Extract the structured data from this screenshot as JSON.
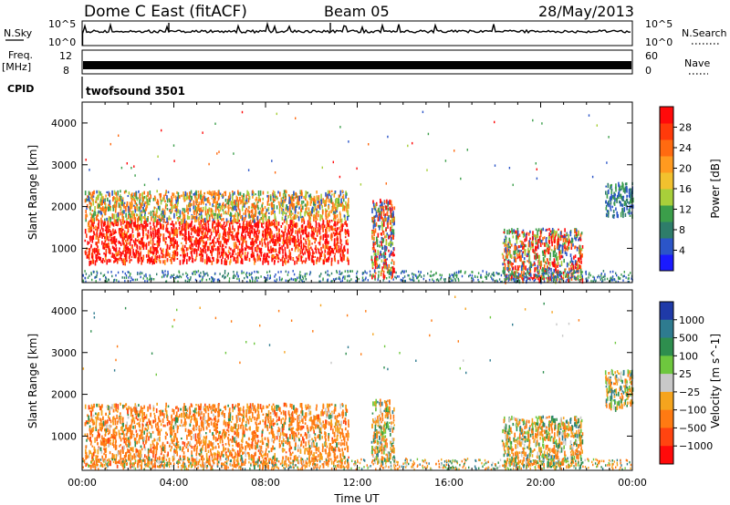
{
  "header": {
    "station": "Dome C East (fitACF)",
    "beam": "Beam 05",
    "date": "28/May/2013"
  },
  "strips": {
    "nsky_label": "N.Sky",
    "nsky_ticks": [
      "10^5",
      "10^0"
    ],
    "nsearch_label": "N.Search",
    "nsearch_ticks": [
      "10^5",
      "10^0"
    ],
    "freq_label": "Freq.",
    "freq_unit": "[MHz]",
    "freq_ticks": [
      "12",
      "8"
    ],
    "nave_label": "Nave",
    "nave_ticks": [
      "60",
      "0"
    ],
    "cpid_label": "CPID",
    "cpid_value": "twofsound 3501"
  },
  "chart_data": [
    {
      "type": "heatmap",
      "parameter": "power",
      "ylabel": "Slant Range [km]",
      "xlabel": "",
      "xlim": [
        0,
        24
      ],
      "ylim": [
        180,
        4500
      ],
      "yticks": [
        "1000",
        "2000",
        "3000",
        "4000"
      ],
      "colorbar": {
        "label": "Power [dB]",
        "ticks": [
          "4",
          "8",
          "12",
          "16",
          "20",
          "24",
          "28"
        ],
        "colors": [
          "#1a1aff",
          "#2b55c8",
          "#2e7d6a",
          "#3b9e4a",
          "#a8cf3a",
          "#f2c12e",
          "#ff9a1f",
          "#ff6a10",
          "#ff3a0a",
          "#ff0a0a"
        ]
      },
      "regions": [
        {
          "t": [
            0.1,
            11.6
          ],
          "r": [
            700,
            1700
          ],
          "level": "high"
        },
        {
          "t": [
            0.1,
            11.6
          ],
          "r": [
            1700,
            2400
          ],
          "level": "mid"
        },
        {
          "t": [
            12.6,
            13.6
          ],
          "r": [
            350,
            2200
          ],
          "level": "mixed"
        },
        {
          "t": [
            18.3,
            21.8
          ],
          "r": [
            250,
            1500
          ],
          "level": "mixed"
        },
        {
          "t": [
            22.8,
            24.0
          ],
          "r": [
            1800,
            2600
          ],
          "level": "low"
        }
      ]
    },
    {
      "type": "heatmap",
      "parameter": "velocity",
      "ylabel": "Slant Range [km]",
      "xlabel": "Time UT",
      "xlim": [
        0,
        24
      ],
      "ylim": [
        180,
        4500
      ],
      "xticks": [
        "00:00",
        "04:00",
        "08:00",
        "12:00",
        "16:00",
        "20:00",
        "00:00"
      ],
      "yticks": [
        "1000",
        "2000",
        "3000",
        "4000"
      ],
      "colorbar": {
        "label": "Velocity [m s^-1]",
        "ticks": [
          "1000",
          "500",
          "100",
          "25",
          "−25",
          "−100",
          "−500",
          "−1000"
        ],
        "colors": [
          "#1f3aa8",
          "#2e7b8f",
          "#2e8e4e",
          "#6ec73e",
          "#c8c8c8",
          "#f5a41e",
          "#ff7a12",
          "#ff4410",
          "#ff0a0a"
        ]
      },
      "regions": [
        {
          "t": [
            0.1,
            11.6
          ],
          "r": [
            300,
            1800
          ],
          "level": "negative"
        },
        {
          "t": [
            12.6,
            13.6
          ],
          "r": [
            400,
            1900
          ],
          "level": "mixed"
        },
        {
          "t": [
            18.3,
            21.8
          ],
          "r": [
            300,
            1500
          ],
          "level": "mixed"
        },
        {
          "t": [
            22.8,
            24.0
          ],
          "r": [
            1700,
            2600
          ],
          "level": "mixed"
        }
      ]
    }
  ]
}
